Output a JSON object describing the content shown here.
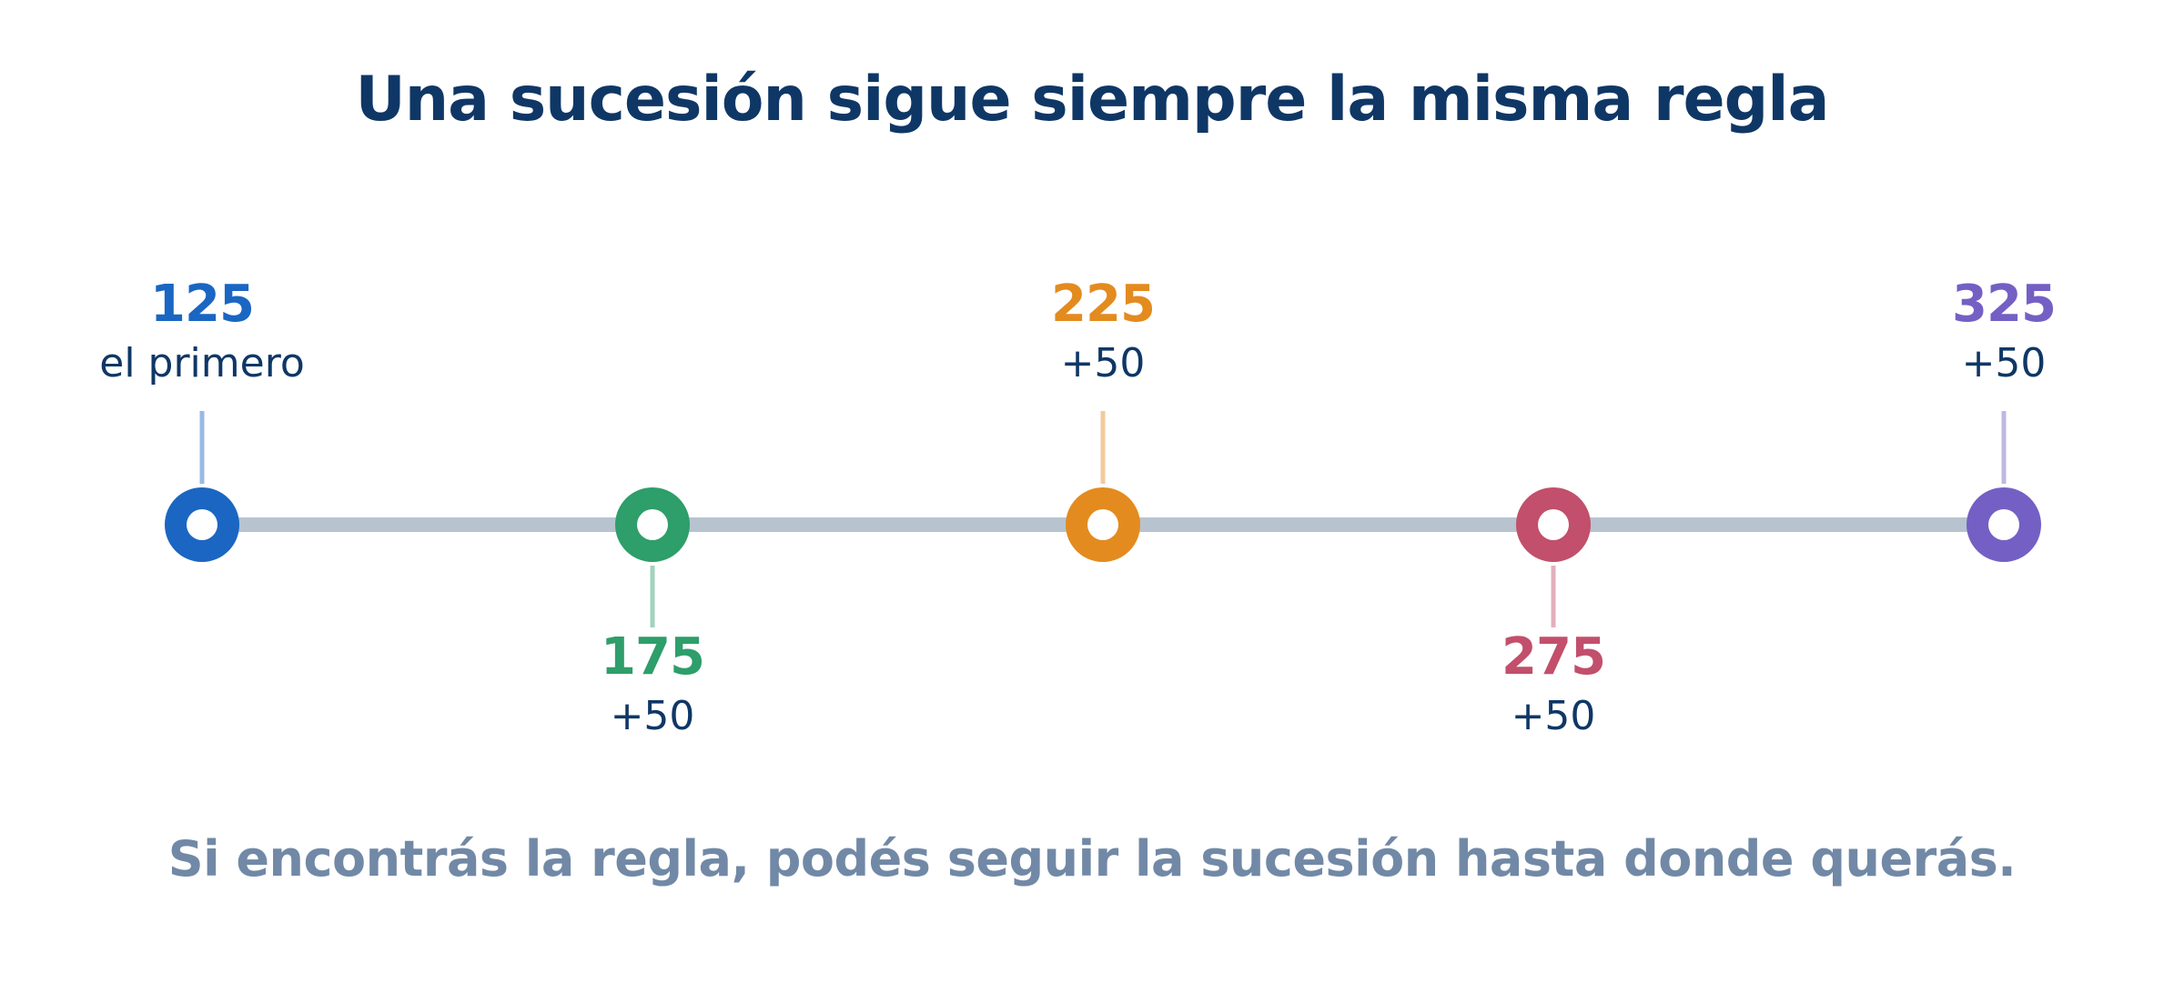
{
  "title": "Una sucesión sigue siempre la misma regla",
  "footer": "Si encontrás la regla, podés seguir la sucesión hasta donde querás.",
  "colors": {
    "title": "#0f3766",
    "footer": "#7189a6",
    "track": "#b7c4d0"
  },
  "nodes": [
    {
      "value": "125",
      "caption": "el primero",
      "color": "#1a66c2",
      "position": "above"
    },
    {
      "value": "175",
      "caption": "+50",
      "color": "#2e9e6a",
      "position": "below"
    },
    {
      "value": "225",
      "caption": "+50",
      "color": "#e38b1f",
      "position": "above"
    },
    {
      "value": "275",
      "caption": "+50",
      "color": "#c24f6b",
      "position": "below"
    },
    {
      "value": "325",
      "caption": "+50",
      "color": "#7460c4",
      "position": "above"
    }
  ]
}
